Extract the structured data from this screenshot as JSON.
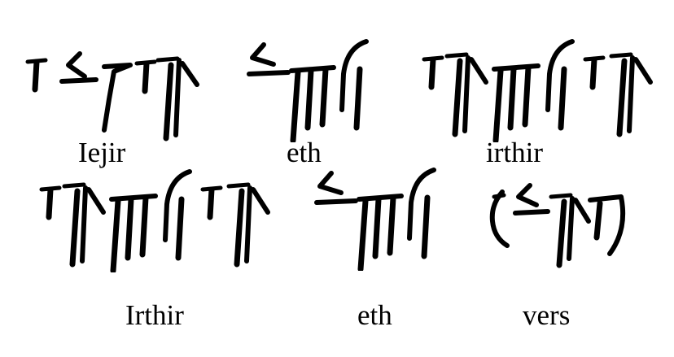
{
  "colors": {
    "background": "#ffffff",
    "ink": "#000000"
  },
  "rows": [
    {
      "words": [
        {
          "transliteration": "Iejir"
        },
        {
          "transliteration": "eth"
        },
        {
          "transliteration": "irthir"
        }
      ]
    },
    {
      "words": [
        {
          "transliteration": "Irthir"
        },
        {
          "transliteration": "eth"
        },
        {
          "transliteration": "vers"
        }
      ]
    }
  ]
}
